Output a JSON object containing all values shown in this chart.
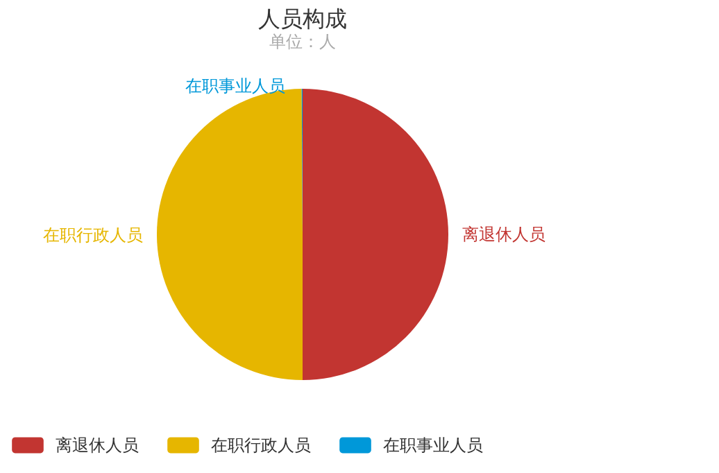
{
  "chart_data": {
    "type": "pie",
    "title": "人员构成",
    "subtitle": "单位：人",
    "categories": [
      "离退休人员",
      "在职行政人员",
      "在职事业人员"
    ],
    "values": [
      50,
      49.9,
      0.1
    ],
    "colors": [
      "#c23531",
      "#e6b600",
      "#0098d9"
    ],
    "legend": "bottom"
  }
}
